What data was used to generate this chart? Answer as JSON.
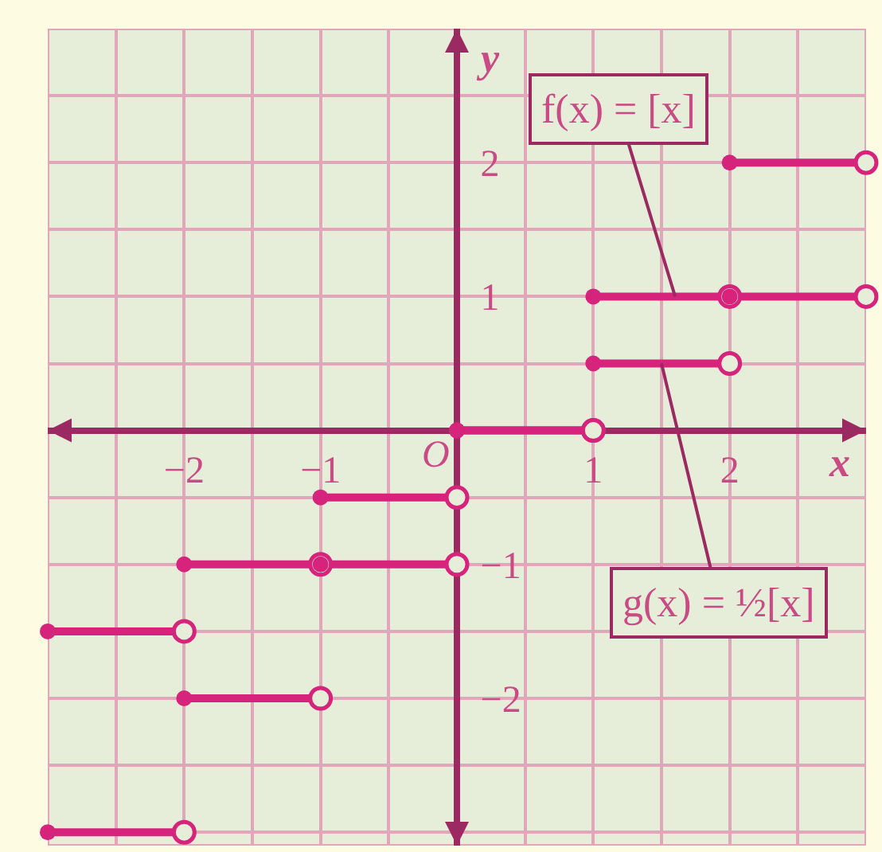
{
  "chart_data": {
    "type": "line",
    "xlabel": "x",
    "ylabel": "y",
    "xlim": [
      -3,
      3
    ],
    "ylim": [
      -3.1,
      3
    ],
    "xticks": [
      {
        "value": -3,
        "label": null
      },
      {
        "value": -2.5,
        "label": null
      },
      -2,
      {
        "value": -1.5,
        "label": null
      },
      -1,
      {
        "value": -0.5,
        "label": null
      },
      {
        "value": 0,
        "label": null
      },
      {
        "value": 0.5,
        "label": null
      },
      1,
      {
        "value": 1.5,
        "label": null
      },
      2,
      {
        "value": 2.5,
        "label": null
      },
      {
        "value": 3,
        "label": null
      }
    ],
    "yticks": [
      {
        "value": -3,
        "label": null
      },
      {
        "value": -2.5,
        "label": null
      },
      -2,
      {
        "value": -1.5,
        "label": null
      },
      -1,
      {
        "value": -0.5,
        "label": null
      },
      {
        "value": 0,
        "label": null
      },
      {
        "value": 0.5,
        "label": null
      },
      1,
      {
        "value": 1.5,
        "label": null
      },
      2,
      {
        "value": 2.5,
        "label": null
      },
      {
        "value": 3,
        "label": null
      }
    ],
    "grid": true,
    "marker": "circle",
    "line_style": "solid",
    "series": [
      {
        "color": "#d6237c",
        "x": [
          -3,
          -2,
          null,
          -2,
          -1,
          null,
          -1,
          0,
          null,
          0,
          1,
          null,
          1,
          2,
          null,
          2,
          3
        ],
        "values": [
          -3,
          -3,
          null,
          -2,
          -2,
          null,
          -1,
          -1,
          null,
          0,
          0,
          null,
          1,
          1,
          null,
          2,
          2
        ]
      },
      {
        "color": "#d6237c",
        "x": [
          -3,
          -2,
          null,
          -2,
          -1,
          null,
          -1,
          0,
          null,
          0,
          1,
          null,
          1,
          2,
          null,
          2,
          3
        ],
        "values": [
          -1.5,
          -1.5,
          null,
          -1,
          -1,
          null,
          -0.5,
          -0.5,
          null,
          0,
          0,
          null,
          0.5,
          0.5,
          null,
          1,
          1
        ]
      }
    ],
    "annotations": [
      {
        "text": "f(x) = [x]",
        "x": 1.6,
        "y": 1
      },
      {
        "text": "g(x) = ½[x]",
        "x": 1.5,
        "y": 0.5
      },
      "O"
    ]
  }
}
